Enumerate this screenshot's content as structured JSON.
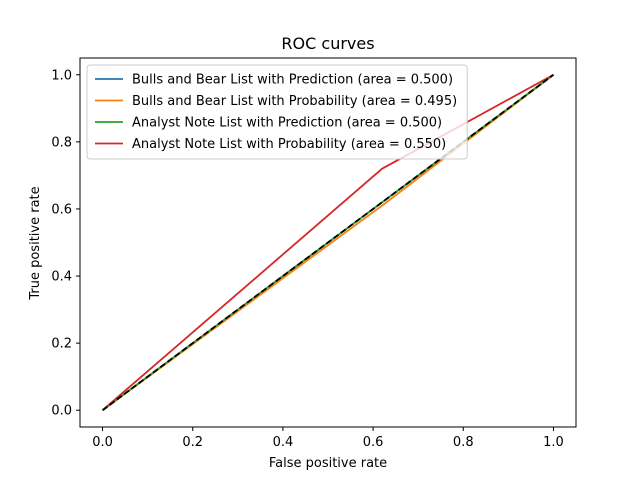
{
  "chart_data": {
    "type": "line",
    "title": "ROC curves",
    "xlabel": "False positive rate",
    "ylabel": "True positive rate",
    "xlim": [
      -0.05,
      1.05
    ],
    "ylim": [
      -0.05,
      1.05
    ],
    "xticks": [
      0.0,
      0.2,
      0.4,
      0.6,
      0.8,
      1.0
    ],
    "yticks": [
      0.0,
      0.2,
      0.4,
      0.6,
      0.8,
      1.0
    ],
    "xtick_labels": [
      "0.0",
      "0.2",
      "0.4",
      "0.6",
      "0.8",
      "1.0"
    ],
    "ytick_labels": [
      "0.0",
      "0.2",
      "0.4",
      "0.6",
      "0.8",
      "1.0"
    ],
    "grid": false,
    "legend_position": "upper-left",
    "series": [
      {
        "name": "Bulls and Bear List with Prediction (area = 0.500)",
        "color": "#1f77b4",
        "x": [
          0.0,
          1.0
        ],
        "y": [
          0.0,
          1.0
        ]
      },
      {
        "name": "Bulls and Bear List with Probability (area = 0.495)",
        "color": "#ff7f0e",
        "x": [
          0.0,
          0.62,
          1.0
        ],
        "y": [
          0.0,
          0.61,
          1.0
        ]
      },
      {
        "name": "Analyst Note List with Prediction (area = 0.500)",
        "color": "#2ca02c",
        "x": [
          0.0,
          1.0
        ],
        "y": [
          0.0,
          1.0
        ]
      },
      {
        "name": "Analyst Note List with Probability (area = 0.550)",
        "color": "#d62728",
        "x": [
          0.0,
          0.62,
          1.0
        ],
        "y": [
          0.0,
          0.72,
          1.0
        ]
      }
    ],
    "reference_line": {
      "color": "#000000",
      "style": "dashed",
      "x": [
        0.0,
        1.0
      ],
      "y": [
        0.0,
        1.0
      ]
    }
  }
}
